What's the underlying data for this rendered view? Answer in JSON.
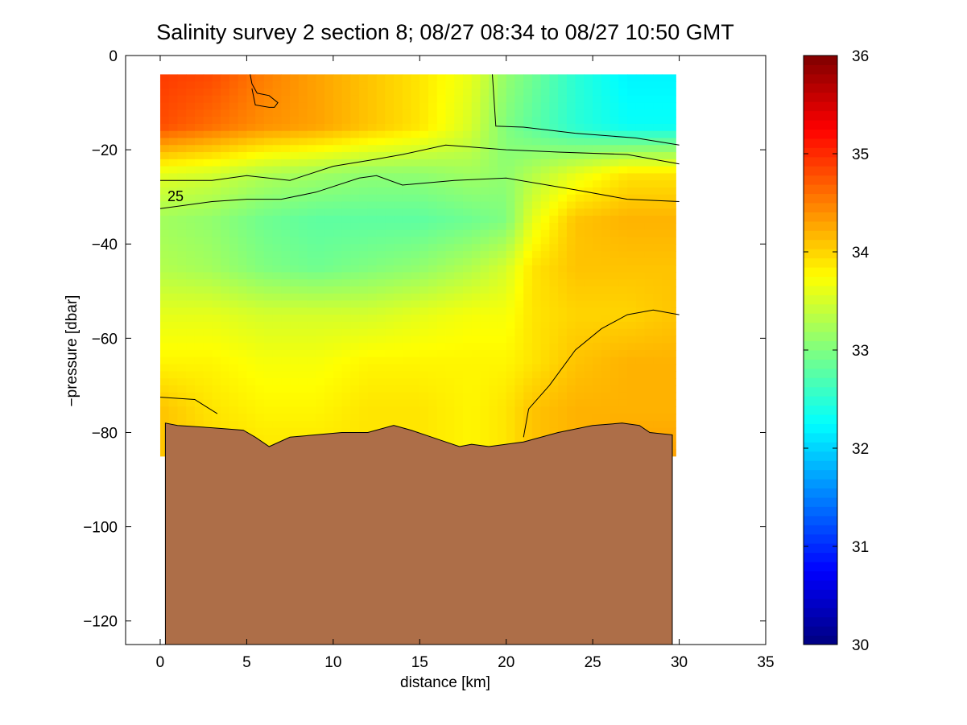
{
  "chart_data": {
    "type": "heatmap",
    "title": "Salinity survey 2 section 8; 08/27 08:34 to 08/27 10:50 GMT",
    "xlabel": "distance [km]",
    "ylabel": "−pressure [dbar]",
    "xlim": [
      -2,
      35
    ],
    "ylim": [
      -125,
      0
    ],
    "xticks": [
      0,
      5,
      10,
      15,
      20,
      25,
      30,
      35
    ],
    "yticks": [
      0,
      -20,
      -40,
      -60,
      -80,
      -100,
      -120
    ],
    "ytick_labels": [
      "0",
      "−20",
      "−40",
      "−60",
      "−80",
      "−100",
      "−120"
    ],
    "colorbar": {
      "range": [
        30,
        36
      ],
      "ticks": [
        30,
        31,
        32,
        33,
        34,
        35,
        36
      ],
      "colormap": "jet"
    },
    "grid": false,
    "salinity_grid": {
      "x": [
        0,
        3,
        6,
        9,
        12,
        15,
        18,
        20,
        21.5,
        24,
        27,
        30
      ],
      "depth": [
        -5,
        -15,
        -25,
        -35,
        -45,
        -55,
        -65,
        -75,
        -85
      ],
      "values": [
        [
          34.9,
          34.8,
          34.5,
          34.3,
          34.1,
          33.9,
          33.6,
          33.1,
          32.9,
          32.5,
          32.2,
          32.2
        ],
        [
          34.8,
          34.6,
          34.4,
          34.3,
          34.1,
          33.9,
          33.5,
          33.0,
          32.8,
          32.5,
          32.3,
          32.3
        ],
        [
          33.6,
          33.5,
          33.3,
          33.2,
          33.1,
          33.1,
          33.2,
          33.1,
          33.3,
          33.6,
          33.9,
          33.9
        ],
        [
          33.2,
          33.1,
          32.9,
          32.8,
          32.8,
          32.8,
          32.9,
          33.0,
          33.6,
          34.1,
          34.2,
          34.2
        ],
        [
          33.3,
          33.2,
          33.0,
          32.9,
          33.0,
          33.1,
          33.3,
          33.5,
          33.9,
          34.1,
          34.1,
          34.1
        ],
        [
          33.6,
          33.6,
          33.5,
          33.5,
          33.5,
          33.6,
          33.7,
          33.7,
          33.9,
          34.0,
          34.0,
          34.1
        ],
        [
          33.8,
          33.8,
          33.7,
          33.7,
          33.8,
          33.8,
          33.8,
          33.8,
          33.9,
          34.1,
          34.2,
          34.2
        ],
        [
          34.1,
          33.9,
          33.8,
          33.8,
          33.9,
          33.9,
          33.8,
          33.9,
          34.1,
          34.2,
          34.2,
          34.2
        ],
        [
          34.1,
          34.0,
          33.9,
          33.9,
          33.9,
          33.9,
          33.8,
          33.9,
          34.1,
          34.2,
          34.3,
          34.3
        ]
      ]
    },
    "bottom_profile": {
      "x": [
        0.3,
        1,
        3,
        4.8,
        5.5,
        6.3,
        7.5,
        9,
        10.5,
        12,
        13.5,
        14.5,
        15.7,
        16.5,
        17.3,
        18,
        19,
        21,
        23,
        25,
        26.7,
        27.7,
        28.3,
        29.6
      ],
      "depth": [
        -78,
        -78.5,
        -79,
        -79.5,
        -81,
        -83,
        -81,
        -80.5,
        -80,
        -80,
        -78.5,
        -79.5,
        -81,
        -82,
        -83,
        -82.5,
        -83,
        -82,
        -80,
        -78.5,
        -78,
        -78.5,
        -80,
        -80.5
      ]
    },
    "contours": [
      {
        "level": 33,
        "x": [
          5.2,
          5.3,
          5.6,
          6.3,
          6.8,
          6.6,
          6.3,
          5.5,
          5.3
        ],
        "y": [
          -4,
          -6,
          -8,
          -8.5,
          -10,
          -11,
          -11,
          -10.5,
          -7
        ]
      },
      {
        "level": 33,
        "x": [
          19.2,
          19.4,
          21,
          24,
          27.5,
          30
        ],
        "y": [
          -4,
          -15,
          -15.2,
          -16.5,
          -17.5,
          -19
        ]
      },
      {
        "level": 33,
        "x": [
          0,
          3,
          5,
          7.5,
          10,
          12.5,
          14,
          16.5,
          20,
          23,
          27,
          30
        ],
        "y": [
          -26.5,
          -26.5,
          -25.5,
          -26.5,
          -23.5,
          -22,
          -21,
          -19,
          -20,
          -20.5,
          -21,
          -23
        ]
      },
      {
        "level": 33,
        "x": [
          0,
          3,
          5,
          7,
          9,
          11.5,
          12.5,
          14,
          17,
          20,
          24,
          27,
          30
        ],
        "y": [
          -32.5,
          -31,
          -30.5,
          -30.5,
          -29,
          -26,
          -25.5,
          -27.5,
          -26.5,
          -26,
          -28.5,
          -30.5,
          -31
        ]
      },
      {
        "level": 34,
        "x": [
          0,
          2,
          3.3
        ],
        "y": [
          -72.5,
          -73,
          -76
        ]
      },
      {
        "level": 34,
        "x": [
          21,
          21.3,
          22.5,
          24,
          25.5,
          27,
          28.5,
          30
        ],
        "y": [
          -81,
          -75,
          -70,
          -62.5,
          -58,
          -55,
          -54,
          -55
        ]
      }
    ],
    "contour_label": "25",
    "contour_label_at": {
      "x": 1,
      "y": -30
    },
    "colors": {
      "bottom_fill": "#ad6e48",
      "axes": "#000000",
      "contour": "#000000"
    }
  }
}
